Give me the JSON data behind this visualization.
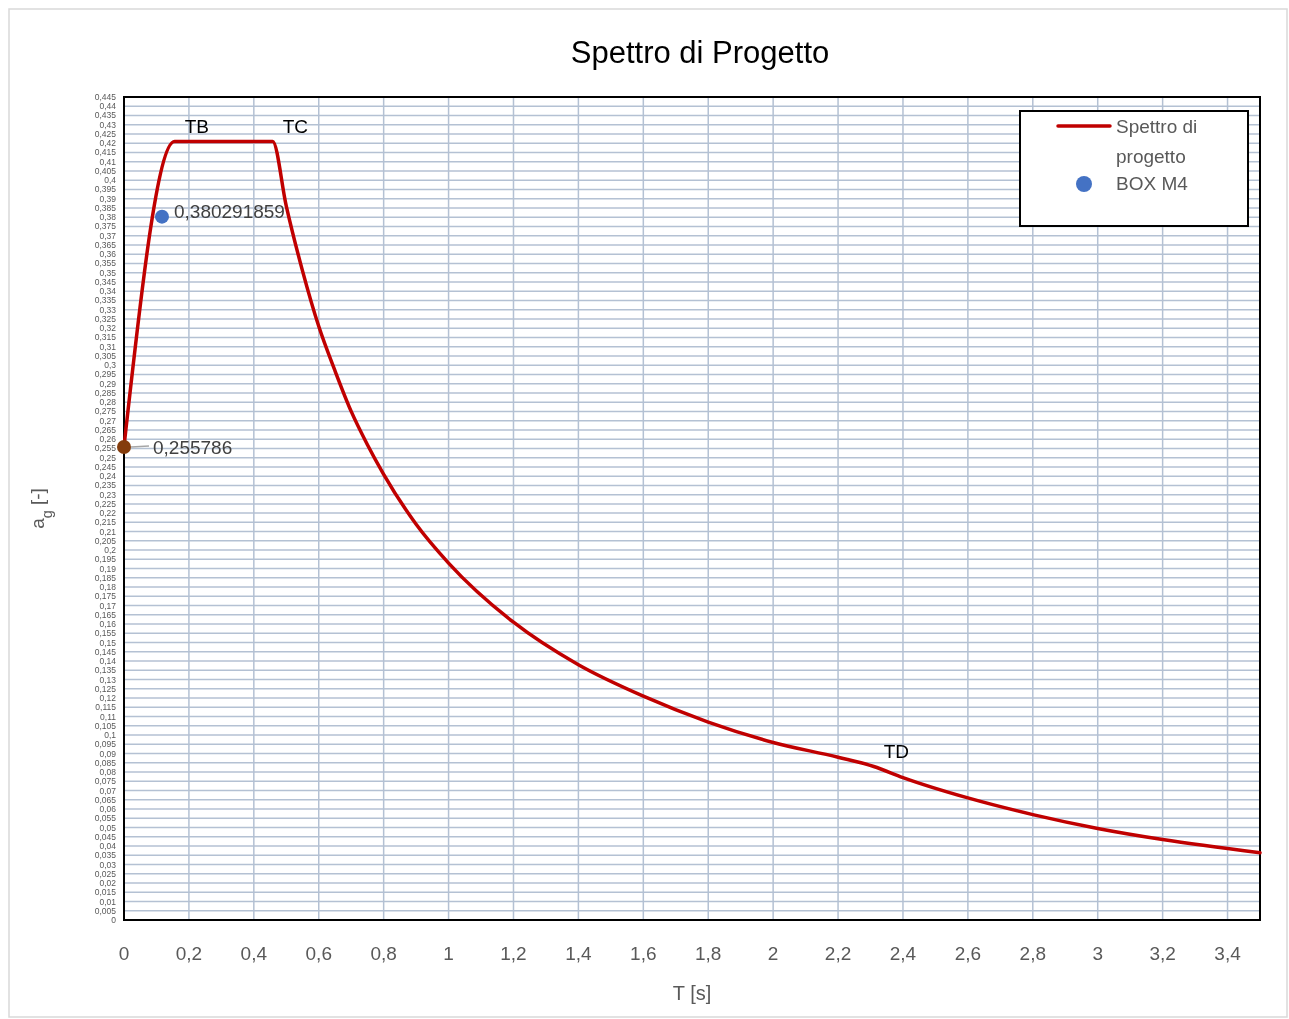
{
  "chart_data": {
    "type": "line",
    "title": "Spettro di Progetto",
    "xlabel": "T [s]",
    "ylabel": "a$_{g}$ [-]",
    "xlim": [
      0,
      3.5
    ],
    "xticks": [
      0,
      {
        "value": 0.2,
        "label": "0,2"
      },
      {
        "value": 0.4,
        "label": "0,4"
      },
      {
        "value": 0.6,
        "label": "0,6"
      },
      {
        "value": 0.8,
        "label": "0,8"
      },
      1,
      {
        "value": 1.2,
        "label": "1,2"
      },
      {
        "value": 1.4,
        "label": "1,4"
      },
      {
        "value": 1.6,
        "label": "1,6"
      },
      {
        "value": 1.8,
        "label": "1,8"
      },
      2,
      {
        "value": 2.2,
        "label": "2,2"
      },
      {
        "value": 2.4,
        "label": "2,4"
      },
      {
        "value": 2.6,
        "label": "2,6"
      },
      {
        "value": 2.8,
        "label": "2,8"
      },
      3,
      {
        "value": 3.2,
        "label": "3,2"
      },
      {
        "value": 3.4,
        "label": "3,4"
      }
    ],
    "ylim": [
      0,
      0.445
    ],
    "yticks": [
      0,
      {
        "value": 0.005,
        "label": "0,005"
      },
      {
        "value": 0.01,
        "label": "0,01"
      },
      {
        "value": 0.015,
        "label": "0,015"
      },
      {
        "value": 0.02,
        "label": "0,02"
      },
      {
        "value": 0.025,
        "label": "0,025"
      },
      {
        "value": 0.03,
        "label": "0,03"
      },
      {
        "value": 0.035,
        "label": "0,035"
      },
      {
        "value": 0.04,
        "label": "0,04"
      },
      {
        "value": 0.045,
        "label": "0,045"
      },
      {
        "value": 0.05,
        "label": "0,05"
      },
      {
        "value": 0.055,
        "label": "0,055"
      },
      {
        "value": 0.06,
        "label": "0,06"
      },
      {
        "value": 0.065,
        "label": "0,065"
      },
      {
        "value": 0.07,
        "label": "0,07"
      },
      {
        "value": 0.075,
        "label": "0,075"
      },
      {
        "value": 0.08,
        "label": "0,08"
      },
      {
        "value": 0.085,
        "label": "0,085"
      },
      {
        "value": 0.09,
        "label": "0,09"
      },
      {
        "value": 0.095,
        "label": "0,095"
      },
      {
        "value": 0.1,
        "label": "0,1"
      },
      {
        "value": 0.105,
        "label": "0,105"
      },
      {
        "value": 0.11,
        "label": "0,11"
      },
      {
        "value": 0.115,
        "label": "0,115"
      },
      {
        "value": 0.12,
        "label": "0,12"
      },
      {
        "value": 0.125,
        "label": "0,125"
      },
      {
        "value": 0.13,
        "label": "0,13"
      },
      {
        "value": 0.135,
        "label": "0,135"
      },
      {
        "value": 0.14,
        "label": "0,14"
      },
      {
        "value": 0.145,
        "label": "0,145"
      },
      {
        "value": 0.15,
        "label": "0,15"
      },
      {
        "value": 0.155,
        "label": "0,155"
      },
      {
        "value": 0.16,
        "label": "0,16"
      },
      {
        "value": 0.165,
        "label": "0,165"
      },
      {
        "value": 0.17,
        "label": "0,17"
      },
      {
        "value": 0.175,
        "label": "0,175"
      },
      {
        "value": 0.18,
        "label": "0,18"
      },
      {
        "value": 0.185,
        "label": "0,185"
      },
      {
        "value": 0.19,
        "label": "0,19"
      },
      {
        "value": 0.195,
        "label": "0,195"
      },
      {
        "value": 0.2,
        "label": "0,2"
      },
      {
        "value": 0.205,
        "label": "0,205"
      },
      {
        "value": 0.21,
        "label": "0,21"
      },
      {
        "value": 0.215,
        "label": "0,215"
      },
      {
        "value": 0.22,
        "label": "0,22"
      },
      {
        "value": 0.225,
        "label": "0,225"
      },
      {
        "value": 0.23,
        "label": "0,23"
      },
      {
        "value": 0.235,
        "label": "0,235"
      },
      {
        "value": 0.24,
        "label": "0,24"
      },
      {
        "value": 0.245,
        "label": "0,245"
      },
      {
        "value": 0.25,
        "label": "0,25"
      },
      {
        "value": 0.255,
        "label": "0,255"
      },
      {
        "value": 0.26,
        "label": "0,26"
      },
      {
        "value": 0.265,
        "label": "0,265"
      },
      {
        "value": 0.27,
        "label": "0,27"
      },
      {
        "value": 0.275,
        "label": "0,275"
      },
      {
        "value": 0.28,
        "label": "0,28"
      },
      {
        "value": 0.285,
        "label": "0,285"
      },
      {
        "value": 0.29,
        "label": "0,29"
      },
      {
        "value": 0.295,
        "label": "0,295"
      },
      {
        "value": 0.3,
        "label": "0,3"
      },
      {
        "value": 0.305,
        "label": "0,305"
      },
      {
        "value": 0.31,
        "label": "0,31"
      },
      {
        "value": 0.315,
        "label": "0,315"
      },
      {
        "value": 0.32,
        "label": "0,32"
      },
      {
        "value": 0.325,
        "label": "0,325"
      },
      {
        "value": 0.33,
        "label": "0,33"
      },
      {
        "value": 0.335,
        "label": "0,335"
      },
      {
        "value": 0.34,
        "label": "0,34"
      },
      {
        "value": 0.345,
        "label": "0,345"
      },
      {
        "value": 0.35,
        "label": "0,35"
      },
      {
        "value": 0.355,
        "label": "0,355"
      },
      {
        "value": 0.36,
        "label": "0,36"
      },
      {
        "value": 0.365,
        "label": "0,365"
      },
      {
        "value": 0.37,
        "label": "0,37"
      },
      {
        "value": 0.375,
        "label": "0,375"
      },
      {
        "value": 0.38,
        "label": "0,38"
      },
      {
        "value": 0.385,
        "label": "0,385"
      },
      {
        "value": 0.39,
        "label": "0,39"
      },
      {
        "value": 0.395,
        "label": "0,395"
      },
      {
        "value": 0.4,
        "label": "0,4"
      },
      {
        "value": 0.405,
        "label": "0,405"
      },
      {
        "value": 0.41,
        "label": "0,41"
      },
      {
        "value": 0.415,
        "label": "0,415"
      },
      {
        "value": 0.42,
        "label": "0,42"
      },
      {
        "value": 0.425,
        "label": "0,425"
      },
      {
        "value": 0.43,
        "label": "0,43"
      },
      {
        "value": 0.435,
        "label": "0,435"
      },
      {
        "value": 0.44,
        "label": "0,44"
      },
      {
        "value": 0.445,
        "label": "0,445"
      }
    ],
    "grid": true,
    "legend": "top right",
    "series": [
      {
        "name": "Spettro di progetto",
        "color": "#c00000",
        "marker": "none",
        "x": [
          0,
          0.156,
          0.458,
          0.5,
          0.55,
          0.6,
          0.65,
          0.7,
          0.75,
          0.8,
          0.9,
          1.0,
          1.2,
          1.4,
          1.6,
          1.8,
          2.0,
          2.2,
          2.31,
          2.4,
          2.6,
          2.8,
          3.0,
          3.2,
          3.5
        ],
        "values": [
          0.256,
          0.421,
          0.421,
          0.386,
          0.351,
          0.321,
          0.297,
          0.275,
          0.257,
          0.241,
          0.214,
          0.193,
          0.161,
          0.138,
          0.121,
          0.107,
          0.096,
          0.088,
          0.083,
          0.077,
          0.066,
          0.057,
          0.0495,
          0.0435,
          0.0364
        ]
      },
      {
        "name": "BOX M4",
        "type": "scatter",
        "color": "#4472c4",
        "marker": "circle",
        "x": [
          0.117
        ],
        "values": [
          0.380291859
        ],
        "value_labels": [
          "0,380291859"
        ]
      },
      {
        "type": "scatter",
        "color": "#843c0c",
        "marker": "circle",
        "x": [
          0
        ],
        "values": [
          0.255786
        ],
        "value_labels": [
          "0,255786"
        ]
      }
    ],
    "annotations": [
      {
        "text": "TB",
        "x": 0.156,
        "y": 0.421
      },
      {
        "text": "TC",
        "x": 0.458,
        "y": 0.421
      },
      {
        "text": "TD",
        "x": 2.31,
        "y": 0.083
      }
    ]
  }
}
